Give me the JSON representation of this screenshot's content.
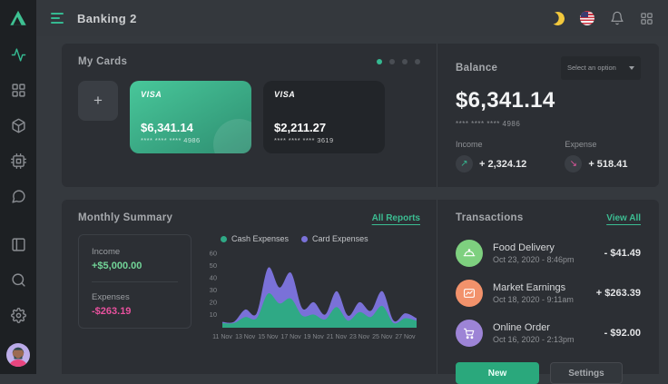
{
  "topbar": {
    "title": "Banking 2"
  },
  "icons": {
    "income_arrow": "↗",
    "expense_arrow": "↘",
    "add": "+"
  },
  "colors": {
    "accent_green": "#35b991",
    "pink": "#e8519e",
    "card_green_top": "#48c79a",
    "card_green_bottom": "#2e8e71"
  },
  "my_cards": {
    "title": "My Cards",
    "cards": [
      {
        "brand": "VISA",
        "amount": "$6,341.14",
        "number": "**** **** **** 4986",
        "variant": "green"
      },
      {
        "brand": "VISA",
        "amount": "$2,211.27",
        "number": "**** **** **** 3619",
        "variant": "dark"
      }
    ]
  },
  "balance": {
    "title": "Balance",
    "select_label": "Select an option",
    "amount": "$6,341.14",
    "card_number": "**** **** **** 4986",
    "income_label": "Income",
    "income_value": "+ 2,324.12",
    "expense_label": "Expense",
    "expense_value": "+ 518.41"
  },
  "monthly_summary": {
    "title": "Monthly Summary",
    "link": "All Reports",
    "income_label": "Income",
    "income_value": "+$5,000.00",
    "expenses_label": "Expenses",
    "expenses_value": "-$263.19"
  },
  "chart_data": {
    "type": "area",
    "stacked": true,
    "title": "Monthly Summary",
    "days": [
      11,
      12,
      13,
      14,
      15,
      16,
      17,
      18,
      19,
      20,
      21,
      22,
      23,
      24,
      25,
      26,
      27,
      28
    ],
    "series": [
      {
        "name": "Cash Expenses",
        "color": "#2fa985",
        "values": [
          3,
          3,
          8,
          7,
          27,
          19,
          23,
          9,
          10,
          6,
          16,
          5,
          12,
          8,
          17,
          3,
          7,
          5
        ]
      },
      {
        "name": "Card Expenses",
        "color": "#7a71d8",
        "values": [
          1,
          1,
          6,
          4,
          21,
          13,
          21,
          6,
          10,
          4,
          13,
          4,
          8,
          5,
          12,
          2,
          4,
          2
        ]
      }
    ],
    "xticklabels": [
      "11 Nov",
      "13 Nov",
      "15 Nov",
      "17 Nov",
      "19 Nov",
      "21 Nov",
      "23 Nov",
      "25 Nov",
      "27 Nov"
    ],
    "xtick_indices": [
      0,
      2,
      4,
      6,
      8,
      10,
      12,
      14,
      16
    ],
    "yticks": [
      10,
      20,
      30,
      40,
      50,
      60
    ],
    "ylim": [
      0,
      65
    ],
    "grid": false,
    "legend_position": "top"
  },
  "transactions": {
    "title": "Transactions",
    "link": "View All",
    "items": [
      {
        "name": "Food Delivery",
        "date": "Oct 23, 2020 - 8:46pm",
        "amount": "- $41.49",
        "icon": "food-cloche-icon",
        "icon_color": "#7ed07f"
      },
      {
        "name": "Market Earnings",
        "date": "Oct 18, 2020 - 9:11am",
        "amount": "+ $263.39",
        "icon": "chart-icon",
        "icon_color": "#f2926b"
      },
      {
        "name": "Online Order",
        "date": "Oct 16, 2020 - 2:13pm",
        "amount": "- $92.00",
        "icon": "shopping-cart-icon",
        "icon_color": "#9d84d6"
      }
    ],
    "buttons": {
      "new_label": "New",
      "settings_label": "Settings"
    }
  }
}
